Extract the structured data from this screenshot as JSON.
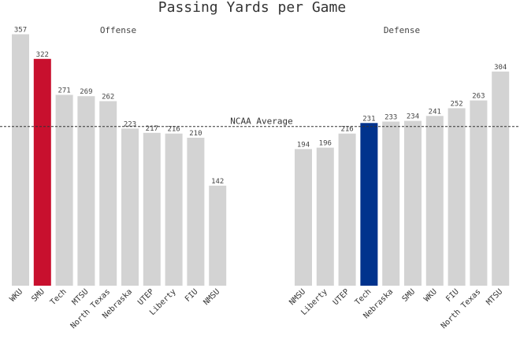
{
  "chart_data": {
    "type": "bar",
    "title": "Passing Yards per Game",
    "reference_line": {
      "label": "NCAA Average",
      "value": 226
    },
    "ylim": [
      0,
      360
    ],
    "grid": false,
    "colors": {
      "default_bar": "#d3d3d3",
      "offense_highlight": "#c8102e",
      "defense_highlight": "#00338d",
      "line": "#333333"
    },
    "panels": [
      {
        "title": "Offense",
        "categories": [
          "WKU",
          "SMU",
          "Tech",
          "MTSU",
          "North Texas",
          "Nebraska",
          "UTEP",
          "Liberty",
          "FIU",
          "NMSU"
        ],
        "values": [
          357,
          322,
          271,
          269,
          262,
          223,
          217,
          216,
          210,
          142
        ],
        "highlight": "SMU"
      },
      {
        "title": "Defense",
        "categories": [
          "NMSU",
          "Liberty",
          "UTEP",
          "Tech",
          "Nebraska",
          "SMU",
          "WKU",
          "FIU",
          "North Texas",
          "MTSU"
        ],
        "values": [
          194,
          196,
          216,
          231,
          233,
          234,
          241,
          252,
          263,
          304
        ],
        "highlight": "Tech"
      }
    ]
  }
}
